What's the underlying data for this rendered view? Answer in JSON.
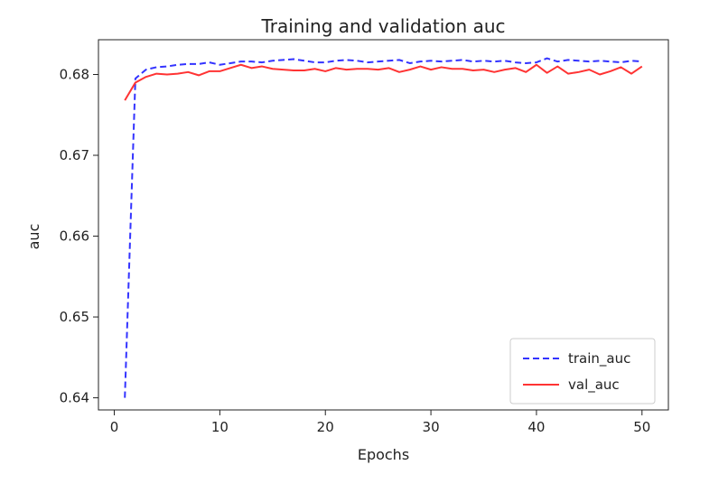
{
  "chart_data": {
    "type": "line",
    "title": "Training and validation auc",
    "xlabel": "Epochs",
    "ylabel": "auc",
    "xlim": [
      -1.5,
      52.5
    ],
    "ylim": [
      0.6385,
      0.6843
    ],
    "grid": false,
    "legend_position": "lower-right",
    "x_ticks": [
      0,
      10,
      20,
      30,
      40,
      50
    ],
    "y_ticks": [
      0.64,
      0.65,
      0.66,
      0.67,
      0.68
    ],
    "x_tick_labels": [
      "0",
      "10",
      "20",
      "30",
      "40",
      "50"
    ],
    "y_tick_labels": [
      "0.64",
      "0.65",
      "0.66",
      "0.67",
      "0.68"
    ],
    "x": [
      1,
      2,
      3,
      4,
      5,
      6,
      7,
      8,
      9,
      10,
      11,
      12,
      13,
      14,
      15,
      16,
      17,
      18,
      19,
      20,
      21,
      22,
      23,
      24,
      25,
      26,
      27,
      28,
      29,
      30,
      31,
      32,
      33,
      34,
      35,
      36,
      37,
      38,
      39,
      40,
      41,
      42,
      43,
      44,
      45,
      46,
      47,
      48,
      49,
      50
    ],
    "series": [
      {
        "name": "train_auc",
        "color": "#3333ff",
        "style": "dashed",
        "values": [
          0.64,
          0.6795,
          0.6806,
          0.6809,
          0.681,
          0.6812,
          0.6813,
          0.6813,
          0.6815,
          0.6812,
          0.6814,
          0.6816,
          0.6816,
          0.6815,
          0.6817,
          0.6818,
          0.6819,
          0.6817,
          0.6815,
          0.6815,
          0.6817,
          0.6818,
          0.6817,
          0.6815,
          0.6816,
          0.6817,
          0.6818,
          0.6814,
          0.6816,
          0.6817,
          0.6816,
          0.6817,
          0.6818,
          0.6816,
          0.6817,
          0.6816,
          0.6817,
          0.6815,
          0.6814,
          0.6815,
          0.682,
          0.6816,
          0.6818,
          0.6817,
          0.6816,
          0.6817,
          0.6816,
          0.6815,
          0.6817,
          0.6816
        ]
      },
      {
        "name": "val_auc",
        "color": "#ff3333",
        "style": "solid",
        "values": [
          0.6768,
          0.679,
          0.6797,
          0.6801,
          0.68,
          0.6801,
          0.6803,
          0.6799,
          0.6804,
          0.6804,
          0.6808,
          0.6812,
          0.6808,
          0.681,
          0.6807,
          0.6806,
          0.6805,
          0.6805,
          0.6807,
          0.6804,
          0.6808,
          0.6806,
          0.6807,
          0.6807,
          0.6806,
          0.6808,
          0.6803,
          0.6806,
          0.681,
          0.6806,
          0.6809,
          0.6807,
          0.6807,
          0.6805,
          0.6806,
          0.6803,
          0.6806,
          0.6808,
          0.6803,
          0.6812,
          0.6802,
          0.681,
          0.6801,
          0.6803,
          0.6806,
          0.68,
          0.6804,
          0.6809,
          0.6801,
          0.681
        ]
      }
    ]
  }
}
